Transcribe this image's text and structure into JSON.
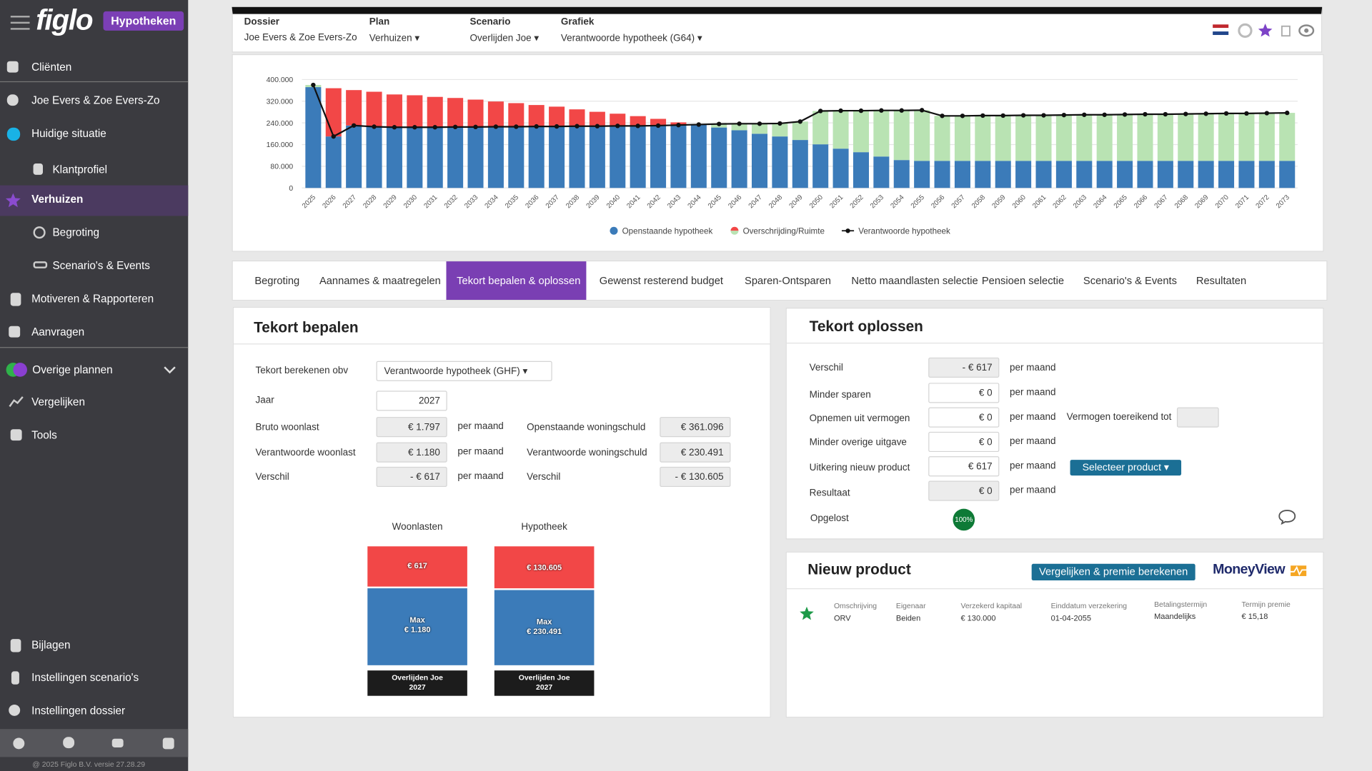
{
  "sidebar": {
    "logo": "figlo",
    "badge": "Hypotheken",
    "menu": [
      "Cliënten",
      "Joe Evers & Zoe Evers-Zo",
      "Huidige situatie",
      "Klantprofiel",
      "Verhuizen",
      "Begroting",
      "Scenario's & Events",
      "Motiveren & Rapporteren",
      "Aanvragen",
      "Overige plannen",
      "Vergelijken",
      "Tools"
    ],
    "bottom_menu": [
      "Bijlagen",
      "Instellingen scenario's",
      "Instellingen dossier"
    ],
    "footer": "@ 2025 Figlo B.V. versie 27.28.29"
  },
  "header": {
    "fields": [
      {
        "label": "Dossier",
        "value": "Joe Evers & Zoe Evers-Zo"
      },
      {
        "label": "Plan",
        "value": "Verhuizen"
      },
      {
        "label": "Scenario",
        "value": "Overlijden Joe"
      },
      {
        "label": "Grafiek",
        "value": "Verantwoorde hypotheek (G64)"
      }
    ]
  },
  "chart_data": {
    "type": "bar",
    "stacked": true,
    "categories": [
      "2025",
      "2026",
      "2027",
      "2028",
      "2029",
      "2030",
      "2031",
      "2032",
      "2033",
      "2034",
      "2035",
      "2036",
      "2037",
      "2038",
      "2039",
      "2040",
      "2041",
      "2042",
      "2043",
      "2044",
      "2045",
      "2046",
      "2047",
      "2048",
      "2049",
      "2050",
      "2051",
      "2052",
      "2053",
      "2054",
      "2055",
      "2056",
      "2057",
      "2058",
      "2059",
      "2060",
      "2061",
      "2062",
      "2063",
      "2064",
      "2065",
      "2066",
      "2067",
      "2068",
      "2069",
      "2070",
      "2071",
      "2072",
      "2073"
    ],
    "series": [
      {
        "name": "Openstaande hypotheek",
        "color": "#3b7bb9",
        "values": [
          372000,
          190000,
          230491,
          226000,
          224000,
          224000,
          224000,
          225000,
          225000,
          226000,
          226000,
          227000,
          227000,
          228000,
          228000,
          229000,
          229000,
          230000,
          232000,
          233000,
          223000,
          213000,
          200000,
          190000,
          177000,
          161000,
          145000,
          132000,
          116000,
          103000,
          100000,
          100000,
          100000,
          100000,
          100000,
          100000,
          100000,
          100000,
          100000,
          100000,
          100000,
          100000,
          100000,
          100000,
          100000,
          100000,
          100000,
          100000,
          100000
        ]
      },
      {
        "name": "Overschrijding/Ruimte",
        "color": [
          "#f24747",
          "#b9e3b3"
        ],
        "values": [
          null,
          178000,
          130605,
          129000,
          121000,
          118000,
          112000,
          107000,
          101000,
          93000,
          87000,
          79000,
          73000,
          62000,
          53000,
          45000,
          36000,
          25000,
          10000,
          null,
          null,
          null,
          null,
          null,
          null,
          null,
          null,
          null,
          null,
          null,
          null,
          null,
          null,
          null,
          null,
          null,
          null,
          null,
          null,
          null,
          null,
          null,
          null,
          null,
          null,
          null,
          null,
          null,
          null
        ],
        "ruimte": [
          8000,
          null,
          null,
          null,
          null,
          null,
          null,
          null,
          null,
          null,
          null,
          null,
          null,
          null,
          null,
          null,
          null,
          null,
          null,
          1000,
          13000,
          24000,
          37000,
          48000,
          68000,
          123000,
          140000,
          153000,
          170000,
          183000,
          187000,
          166000,
          166000,
          167000,
          167000,
          168000,
          168000,
          169000,
          170000,
          170000,
          171000,
          172000,
          172000,
          173000,
          174000,
          175000,
          175000,
          176000,
          177000
        ]
      },
      {
        "name": "Verantwoorde hypotheek",
        "type": "line",
        "color": "#111111",
        "values": [
          380000,
          190000,
          230491,
          226000,
          224000,
          224000,
          224000,
          225000,
          225000,
          226000,
          226000,
          227000,
          227000,
          228000,
          228000,
          229000,
          229000,
          230000,
          232000,
          234000,
          236000,
          237000,
          237000,
          238000,
          245000,
          284000,
          285000,
          285000,
          286000,
          286000,
          287000,
          266000,
          266000,
          267000,
          267000,
          268000,
          268000,
          269000,
          270000,
          270000,
          271000,
          272000,
          272000,
          273000,
          274000,
          275000,
          275000,
          276000,
          277000
        ]
      }
    ],
    "ylim": [
      0,
      400000
    ],
    "yticks": [
      0,
      {
        "value": 80000,
        "label": "80.000"
      },
      {
        "value": 160000,
        "label": "160.000"
      },
      {
        "value": 240000,
        "label": "240.000"
      },
      {
        "value": 320000,
        "label": "320.000"
      },
      {
        "value": 400000,
        "label": "400.000"
      }
    ],
    "grid": true,
    "legend": "bottom"
  },
  "tabs": {
    "items": [
      "Begroting",
      "Aannames & maatregelen",
      "Tekort bepalen & oplossen",
      "Gewenst resterend budget",
      "Sparen-Ontsparen",
      "Netto maandlasten selectie",
      "Pensioen selectie",
      "Scenario's & Events",
      "Resultaten"
    ],
    "active": 2
  },
  "tekort_bepalen": {
    "title": "Tekort bepalen",
    "basis_label": "Tekort berekenen obv",
    "basis_value": "Verantwoorde hypotheek (GHF)",
    "jaar_label": "Jaar",
    "jaar": "2027",
    "unit": "per maand",
    "left_rows": [
      {
        "label": "Bruto woonlast",
        "value": "€ 1.797"
      },
      {
        "label": "Verantwoorde woonlast",
        "value": "€ 1.180"
      },
      {
        "label": "Verschil",
        "value": "- € 617"
      }
    ],
    "right_rows": [
      {
        "label": "Openstaande woningschuld",
        "value": "€ 361.096"
      },
      {
        "label": "Verantwoorde woningschuld",
        "value": "€ 230.491"
      },
      {
        "label": "Verschil",
        "value": "- € 130.605"
      }
    ],
    "bars": [
      {
        "title": "Woonlasten",
        "top": 617,
        "top_label": "€ 617",
        "base_caption": "Max",
        "base": 1180,
        "base_label": "€ 1.180",
        "footer": [
          "Overlijden Joe",
          "2027"
        ]
      },
      {
        "title": "Hypotheek",
        "top": 130605,
        "top_label": "€ 130.605",
        "base_caption": "Max",
        "base": 230491,
        "base_label": "€ 230.491",
        "footer": [
          "Overlijden Joe",
          "2027"
        ]
      }
    ]
  },
  "tekort_oplossen": {
    "title": "Tekort oplossen",
    "unit": "per maand",
    "rows": [
      {
        "label": "Verschil",
        "value": "- € 617"
      },
      {
        "label": "Minder sparen",
        "value": "€ 0"
      },
      {
        "label": "Opnemen uit vermogen",
        "value": "€ 0"
      },
      {
        "label": "Minder overige uitgave",
        "value": "€ 0"
      },
      {
        "label": "Uitkering nieuw product",
        "value": "€ 617"
      },
      {
        "label": "Resultaat",
        "value": "€ 0"
      }
    ],
    "vermogen_label": "Vermogen toereikend tot",
    "select_button": "Selecteer product",
    "opgelost_label": "Opgelost",
    "opgelost_value": "100%"
  },
  "nieuw_product": {
    "title": "Nieuw product",
    "button": "Vergelijken & premie berekenen",
    "brand": "MoneyView",
    "columns": [
      "Omschrijving",
      "Eigenaar",
      "Verzekerd kapitaal",
      "Einddatum verzekering",
      "Betalingstermijn",
      "Termijn premie"
    ],
    "row": [
      "ORV",
      "Beiden",
      "€ 130.000",
      "01-04-2055",
      "Maandelijks",
      "€ 15,18"
    ]
  }
}
